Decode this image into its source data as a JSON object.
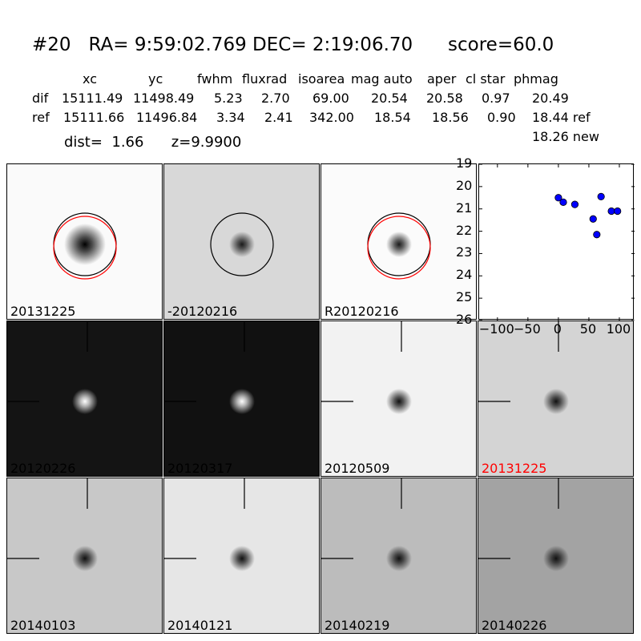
{
  "header": {
    "title": "#20   RA= 9:59:02.769 DEC= 2:19:06.70      score=60.0",
    "col_headers": [
      "xc",
      "yc",
      "fwhm",
      "fluxrad",
      "isoarea",
      "mag auto",
      "aper",
      "cl star",
      "phmag"
    ],
    "rows": [
      {
        "label": "dif",
        "values": [
          "15111.49",
          "11498.49",
          "5.23",
          "2.70",
          "69.00",
          "20.54",
          "20.58",
          "0.97",
          "20.49"
        ]
      },
      {
        "label": "ref",
        "values": [
          "15111.66",
          "11496.84",
          "3.34",
          "2.41",
          "342.00",
          "18.54",
          "18.56",
          "0.90",
          "18.44 ref"
        ]
      }
    ],
    "dist_line": "dist=  1.66      z=9.9900",
    "new_phmag": "18.26 new"
  },
  "panels": [
    {
      "label": "20131225",
      "bg": "#fafafa",
      "blob": "#000000",
      "label_color": "#000000",
      "circles": true,
      "red_circle": true,
      "crosshair": false
    },
    {
      "label": "-20120216",
      "bg": "#d8d8d8",
      "blob": "#1a1a1a",
      "label_color": "#000000",
      "circles": true,
      "red_circle": false,
      "crosshair": false
    },
    {
      "label": "R20120216",
      "bg": "#fbfbfb",
      "blob": "#1a1a1a",
      "label_color": "#000000",
      "circles": true,
      "red_circle": true,
      "crosshair": false
    },
    {
      "label": "20120226",
      "bg": "#141414",
      "blob": "#ffffff",
      "label_color": "#000000",
      "circles": false,
      "red_circle": false,
      "crosshair": true
    },
    {
      "label": "20120317",
      "bg": "#111111",
      "blob": "#ffffff",
      "label_color": "#000000",
      "circles": false,
      "red_circle": false,
      "crosshair": true
    },
    {
      "label": "20120509",
      "bg": "#f2f2f2",
      "blob": "#111111",
      "label_color": "#000000",
      "circles": false,
      "red_circle": false,
      "crosshair": true
    },
    {
      "label": "20131225",
      "bg": "#d4d4d4",
      "blob": "#111111",
      "label_color": "#ff0000",
      "circles": false,
      "red_circle": false,
      "crosshair": true
    },
    {
      "label": "20140103",
      "bg": "#c8c8c8",
      "blob": "#111111",
      "label_color": "#000000",
      "circles": false,
      "red_circle": false,
      "crosshair": true
    },
    {
      "label": "20140121",
      "bg": "#e6e6e6",
      "blob": "#111111",
      "label_color": "#000000",
      "circles": false,
      "red_circle": false,
      "crosshair": true
    },
    {
      "label": "20140219",
      "bg": "#bcbcbc",
      "blob": "#111111",
      "label_color": "#000000",
      "circles": false,
      "red_circle": false,
      "crosshair": true
    },
    {
      "label": "20140226",
      "bg": "#a3a3a3",
      "blob": "#111111",
      "label_color": "#000000",
      "circles": false,
      "red_circle": false,
      "crosshair": true
    }
  ],
  "chart_data": {
    "type": "scatter",
    "title": "",
    "xlabel": "",
    "ylabel": "",
    "xlim": [
      -130,
      125
    ],
    "ylim": [
      26,
      19
    ],
    "xticks": [
      -100,
      -50,
      0,
      50,
      100
    ],
    "xtick_labels": [
      "−100",
      "−50",
      "0",
      "50",
      "100"
    ],
    "yticks": [
      19,
      20,
      21,
      22,
      23,
      24,
      25,
      26
    ],
    "grid": false,
    "marker_color": "#0000ff",
    "points": [
      {
        "x": 0,
        "y": 20.5
      },
      {
        "x": 8,
        "y": 20.7
      },
      {
        "x": 27,
        "y": 20.8
      },
      {
        "x": 57,
        "y": 21.45
      },
      {
        "x": 63,
        "y": 22.15
      },
      {
        "x": 70,
        "y": 20.45
      },
      {
        "x": 87,
        "y": 21.1
      },
      {
        "x": 97,
        "y": 21.1
      }
    ]
  }
}
